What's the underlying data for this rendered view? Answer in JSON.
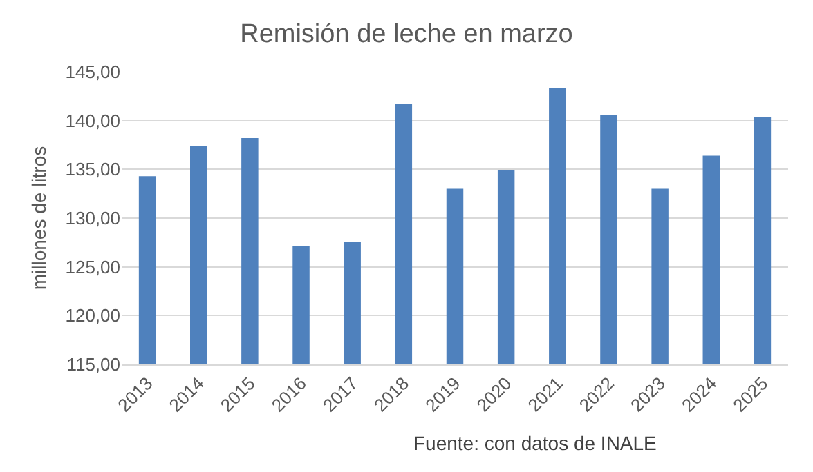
{
  "chart_data": {
    "type": "bar",
    "title": "Remisión de leche en marzo",
    "ylabel": "millones de litros",
    "annotations": [
      "Fuente: con datos de INALE"
    ],
    "categories": [
      "2013",
      "2014",
      "2015",
      "2016",
      "2017",
      "2018",
      "2019",
      "2020",
      "2021",
      "2022",
      "2023",
      "2024",
      "2025"
    ],
    "values": [
      134.3,
      137.4,
      138.2,
      127.1,
      127.6,
      141.7,
      133.0,
      134.9,
      143.3,
      140.6,
      133.0,
      136.4,
      140.4
    ],
    "color": "#4f81bd",
    "ylim": [
      115,
      145
    ],
    "yticks": [
      {
        "value": 115,
        "label": "115,00"
      },
      {
        "value": 120,
        "label": "120,00"
      },
      {
        "value": 125,
        "label": "125,00"
      },
      {
        "value": 130,
        "label": "130,00"
      },
      {
        "value": 135,
        "label": "135,00"
      },
      {
        "value": 140,
        "label": "140,00"
      },
      {
        "value": 145,
        "label": "145,00"
      }
    ],
    "grid": "y",
    "legend": false
  }
}
